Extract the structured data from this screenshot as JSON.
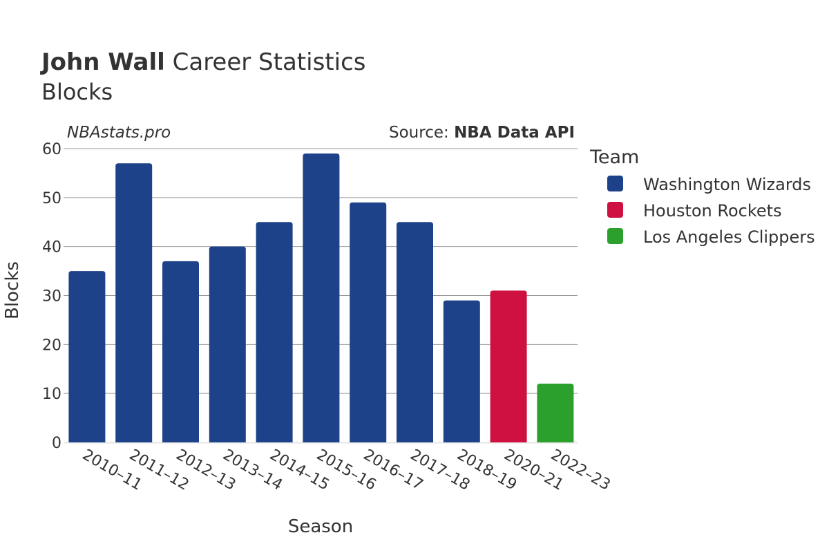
{
  "header": {
    "title_bold": "John Wall",
    "title_rest": " Career Statistics",
    "subtitle": "Blocks"
  },
  "credits": {
    "site": "NBAstats.pro",
    "source_prefix": "Source: ",
    "source_name": "NBA Data API"
  },
  "legend": {
    "title": "Team"
  },
  "colors": {
    "Washington Wizards": "#1d428a",
    "Houston Rockets": "#ce1141",
    "Los Angeles Clippers": "#2ca02c",
    "gridline": "#999999",
    "axis_line": "#e6e6e6",
    "text": "#333333"
  },
  "chart_data": {
    "type": "bar",
    "title": "John Wall Career Statistics",
    "subtitle": "Blocks",
    "xlabel": "Season",
    "ylabel": "Blocks",
    "ylim": [
      0,
      60
    ],
    "yticks": [
      0,
      10,
      20,
      30,
      40,
      50,
      60
    ],
    "grid": true,
    "legend_position": "right",
    "categories": [
      "2010–11",
      "2011–12",
      "2012–13",
      "2013–14",
      "2014–15",
      "2015–16",
      "2016–17",
      "2017–18",
      "2018–19",
      "2020–21",
      "2022–23"
    ],
    "values": [
      35,
      57,
      37,
      40,
      45,
      59,
      49,
      45,
      29,
      31,
      12
    ],
    "teams": [
      "Washington Wizards",
      "Washington Wizards",
      "Washington Wizards",
      "Washington Wizards",
      "Washington Wizards",
      "Washington Wizards",
      "Washington Wizards",
      "Washington Wizards",
      "Washington Wizards",
      "Houston Rockets",
      "Los Angeles Clippers"
    ],
    "series": [
      {
        "name": "Washington Wizards"
      },
      {
        "name": "Houston Rockets"
      },
      {
        "name": "Los Angeles Clippers"
      }
    ]
  }
}
